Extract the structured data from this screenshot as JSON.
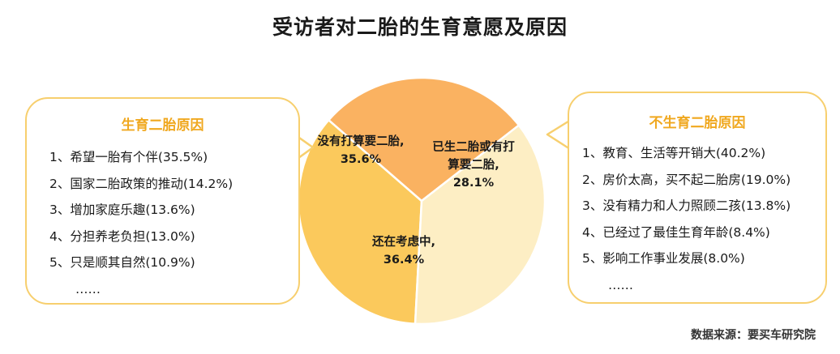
{
  "title": "受访者对二胎的生育意愿及原因",
  "left_box": {
    "heading": "生育二胎原因",
    "items": [
      "1、希望一胎有个伴(35.5%)",
      "2、国家二胎政策的推动(14.2%)",
      "3、增加家庭乐趣(13.6%)",
      "4、分担养老负担(13.0%)",
      "5、只是顺其自然(10.9%)",
      "……"
    ]
  },
  "right_box": {
    "heading": "不生育二胎原因",
    "items": [
      "1、教育、生活等开销大(40.2%)",
      "2、房价太高，买不起二胎房(19.0%)",
      "3、没有精力和人力照顾二孩(13.8%)",
      "4、已经过了最佳生育年龄(8.4%)",
      "5、影响工作事业发展(8.0%)",
      "……"
    ]
  },
  "source": "数据来源：要买车研究院",
  "colors": {
    "accent": "#f0a81f",
    "border": "#f7cf6e",
    "slice_planned_not": "#fbc95c",
    "slice_had_or_plan": "#fab261",
    "slice_considering": "#fdeec4"
  },
  "chart_data": {
    "type": "pie",
    "title": "受访者对二胎的生育意愿及原因",
    "slices": [
      {
        "label_lines": [
          "没有打算要二胎,"
        ],
        "value": 35.6,
        "value_label": "35.6%"
      },
      {
        "label_lines": [
          "已生二胎或有打",
          "算要二胎,"
        ],
        "value": 28.1,
        "value_label": "28.1%"
      },
      {
        "label_lines": [
          "还在考虑中,"
        ],
        "value": 36.4,
        "value_label": "36.4%"
      }
    ]
  }
}
